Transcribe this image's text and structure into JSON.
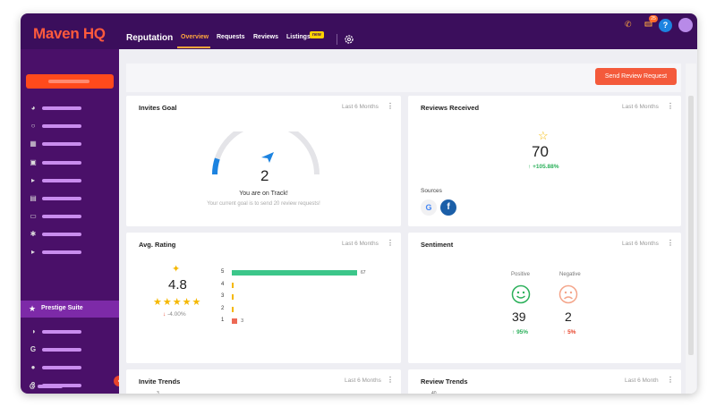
{
  "app": {
    "logo_text": "Maven HQ",
    "section_title": "Reputation",
    "tabs": [
      {
        "label": "Overview",
        "active": true
      },
      {
        "label": "Requests"
      },
      {
        "label": "Reviews"
      },
      {
        "label": "Listings",
        "badge": "new"
      }
    ],
    "notification_count": "25"
  },
  "sidebar": {
    "prestige_label": "Prestige Suite",
    "icons_top": [
      "dashboard-icon",
      "chat-icon",
      "calendar-icon",
      "contacts-icon",
      "ads-icon",
      "document-icon",
      "inbox-icon",
      "connections-icon",
      "campaign-icon"
    ],
    "icons_bottom": [
      "reports-icon",
      "google-icon",
      "ideas-icon",
      "help-icon"
    ]
  },
  "toolbar": {
    "send_review_request": "Send Review Request"
  },
  "cards": {
    "invites_goal": {
      "title": "Invites Goal",
      "period": "Last 6 Months",
      "value": "2",
      "status": "You are on Track!",
      "note": "Your current goal is to send 20 review requests!",
      "progress": 0.1
    },
    "reviews_received": {
      "title": "Reviews Received",
      "period": "Last 6 Months",
      "value": "70",
      "change": "+105.88%",
      "sources_label": "Sources"
    },
    "avg_rating": {
      "title": "Avg. Rating",
      "period": "Last 6 Months",
      "value": "4.8",
      "change": "-4.00%",
      "stars": 5,
      "distribution": [
        {
          "star": "5",
          "count": 67
        },
        {
          "star": "4",
          "count": 0
        },
        {
          "star": "3",
          "count": 0
        },
        {
          "star": "2",
          "count": 0
        },
        {
          "star": "1",
          "count": 3
        }
      ],
      "count_labels": [
        "67",
        "3"
      ]
    },
    "sentiment": {
      "title": "Sentiment",
      "period": "Last 6 Months",
      "positive_label": "Positive",
      "negative_label": "Negative",
      "positive_value": "39",
      "negative_value": "2",
      "positive_change": "95%",
      "negative_change": "5%"
    },
    "invite_trends": {
      "title": "Invite Trends",
      "period": "Last 6 Months",
      "first_tick": "3"
    },
    "review_trends": {
      "title": "Review Trends",
      "period": "Last 6 Month",
      "first_tick": "40"
    }
  },
  "colors": {
    "topbar": "#3b0e5c",
    "sidebar": "#4a1069",
    "accent": "#ff5a3c",
    "active_tab": "#ffa63d",
    "positive": "#2bb05a",
    "negative": "#e8432a",
    "rating_bar": "#3cc68a",
    "gauge": "#1c83e0",
    "star": "#f5b800"
  }
}
